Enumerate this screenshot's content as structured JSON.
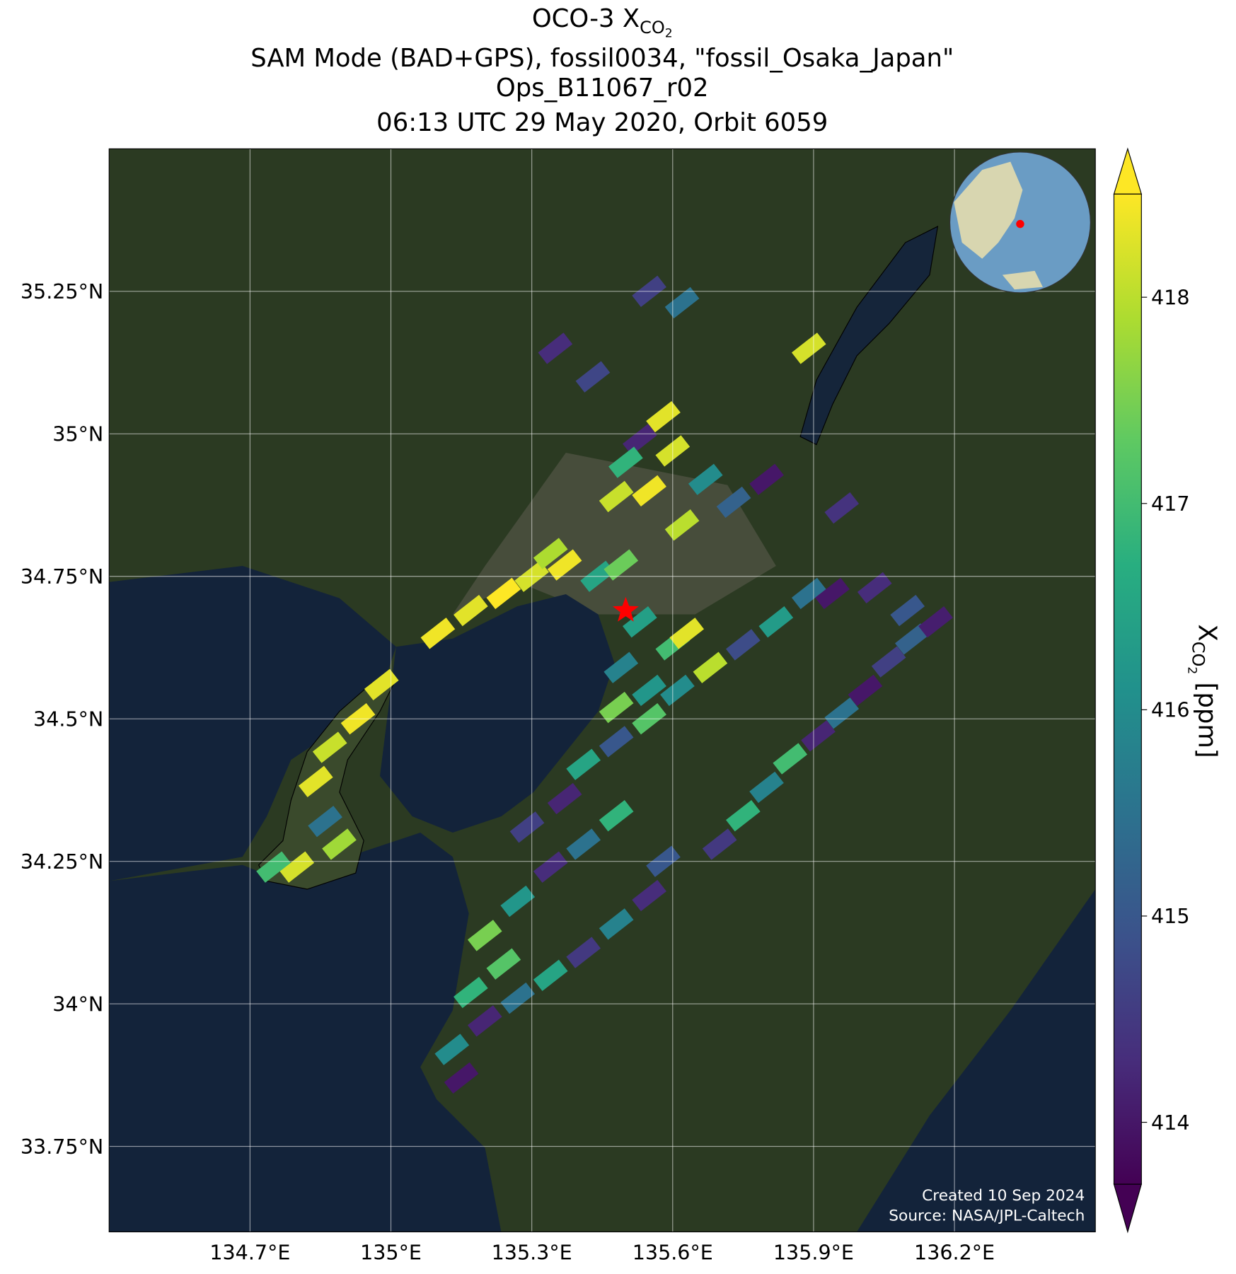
{
  "chart_data": {
    "type": "map",
    "title": [
      "OCO-3 X",
      "CO",
      "2"
    ],
    "subtitle": [
      "SAM Mode (BAD+GPS), fossil0034, \"fossil_Osaka_Japan\"",
      "Ops_B11067_r02",
      "06:13 UTC 29 May 2020, Orbit 6059"
    ],
    "xlim": [
      134.4,
      136.5
    ],
    "ylim": [
      33.6,
      35.5
    ],
    "xticks": [
      {
        "value": 134.7,
        "label": "134.7°E"
      },
      {
        "value": 135.0,
        "label": "135°E"
      },
      {
        "value": 135.3,
        "label": "135.3°E"
      },
      {
        "value": 135.6,
        "label": "135.6°E"
      },
      {
        "value": 135.9,
        "label": "135.9°E"
      },
      {
        "value": 136.2,
        "label": "136.2°E"
      }
    ],
    "yticks": [
      {
        "value": 33.75,
        "label": "33.75°N"
      },
      {
        "value": 34.0,
        "label": "34°N"
      },
      {
        "value": 34.25,
        "label": "34.25°N"
      },
      {
        "value": 34.5,
        "label": "34.5°N"
      },
      {
        "value": 34.75,
        "label": "34.75°N"
      },
      {
        "value": 35.0,
        "label": "35°N"
      },
      {
        "value": 35.25,
        "label": "35.25°N"
      }
    ],
    "grid": true,
    "colormap": "viridis",
    "clim": [
      413.7,
      418.5
    ],
    "cticks": [
      414,
      415,
      416,
      417,
      418
    ],
    "colorbar_label": [
      "X",
      "CO",
      "2",
      " [ppm]"
    ],
    "target": {
      "lon": 135.5,
      "lat": 34.69,
      "color": "#ff0000"
    },
    "footnotes": [
      "Created 10 Sep 2024",
      "Source: NASA/JPL-Caltech"
    ],
    "soundings": {
      "lon": [
        135.55,
        135.62,
        135.35,
        135.43,
        135.89,
        135.58,
        135.53,
        135.6,
        135.5,
        135.55,
        135.48,
        135.67,
        135.73,
        135.8,
        135.62,
        135.96,
        135.1,
        135.17,
        135.24,
        135.3,
        135.37,
        135.34,
        135.44,
        135.49,
        134.98,
        134.93,
        134.87,
        134.84,
        134.86,
        134.89,
        134.8,
        134.75,
        135.53,
        135.6,
        135.49,
        135.55,
        135.48,
        135.63,
        135.41,
        135.48,
        135.55,
        135.61,
        135.68,
        135.75,
        135.82,
        135.89,
        135.7,
        135.75,
        135.8,
        135.85,
        135.91,
        135.96,
        136.01,
        136.06,
        136.11,
        136.16,
        135.94,
        136.03,
        136.1,
        135.2,
        135.27,
        135.34,
        135.41,
        135.48,
        135.37,
        135.29,
        135.13,
        135.2,
        135.27,
        135.34,
        135.41,
        135.48,
        135.55,
        135.58,
        135.17,
        135.24,
        135.15
      ],
      "lat": [
        35.25,
        35.23,
        35.15,
        35.1,
        35.15,
        35.03,
        34.99,
        34.97,
        34.95,
        34.9,
        34.89,
        34.92,
        34.88,
        34.92,
        34.84,
        34.87,
        34.65,
        34.69,
        34.72,
        34.75,
        34.77,
        34.79,
        34.75,
        34.77,
        34.56,
        34.5,
        34.45,
        34.39,
        34.32,
        34.28,
        34.24,
        34.24,
        34.67,
        34.63,
        34.59,
        34.55,
        34.52,
        34.65,
        34.42,
        34.46,
        34.5,
        34.55,
        34.59,
        34.63,
        34.67,
        34.72,
        34.28,
        34.33,
        34.38,
        34.43,
        34.47,
        34.51,
        34.55,
        34.6,
        34.64,
        34.67,
        34.72,
        34.73,
        34.69,
        34.12,
        34.18,
        34.24,
        34.28,
        34.33,
        34.36,
        34.31,
        33.92,
        33.97,
        34.01,
        34.05,
        34.09,
        34.14,
        34.19,
        34.25,
        34.02,
        34.07,
        33.87
      ],
      "values": [
        414.6,
        415.5,
        414.3,
        414.7,
        418.2,
        418.3,
        414.2,
        418.2,
        416.8,
        418.4,
        418.1,
        416.0,
        415.2,
        414.0,
        418.0,
        414.4,
        418.4,
        418.3,
        418.5,
        418.2,
        418.4,
        417.9,
        416.5,
        417.4,
        418.3,
        418.4,
        418.1,
        418.3,
        415.5,
        417.8,
        418.2,
        417.0,
        416.4,
        417.0,
        415.8,
        416.2,
        417.5,
        418.3,
        416.5,
        415.0,
        417.2,
        416.0,
        418.0,
        414.8,
        416.3,
        415.5,
        414.5,
        416.8,
        415.8,
        417.0,
        414.2,
        415.5,
        414.0,
        414.6,
        415.2,
        414.1,
        414.0,
        414.3,
        415.0,
        417.5,
        416.2,
        414.3,
        415.5,
        416.8,
        414.2,
        414.6,
        416.0,
        414.2,
        415.5,
        416.5,
        414.5,
        415.8,
        414.3,
        415.0,
        416.8,
        417.2,
        414.0
      ]
    }
  }
}
